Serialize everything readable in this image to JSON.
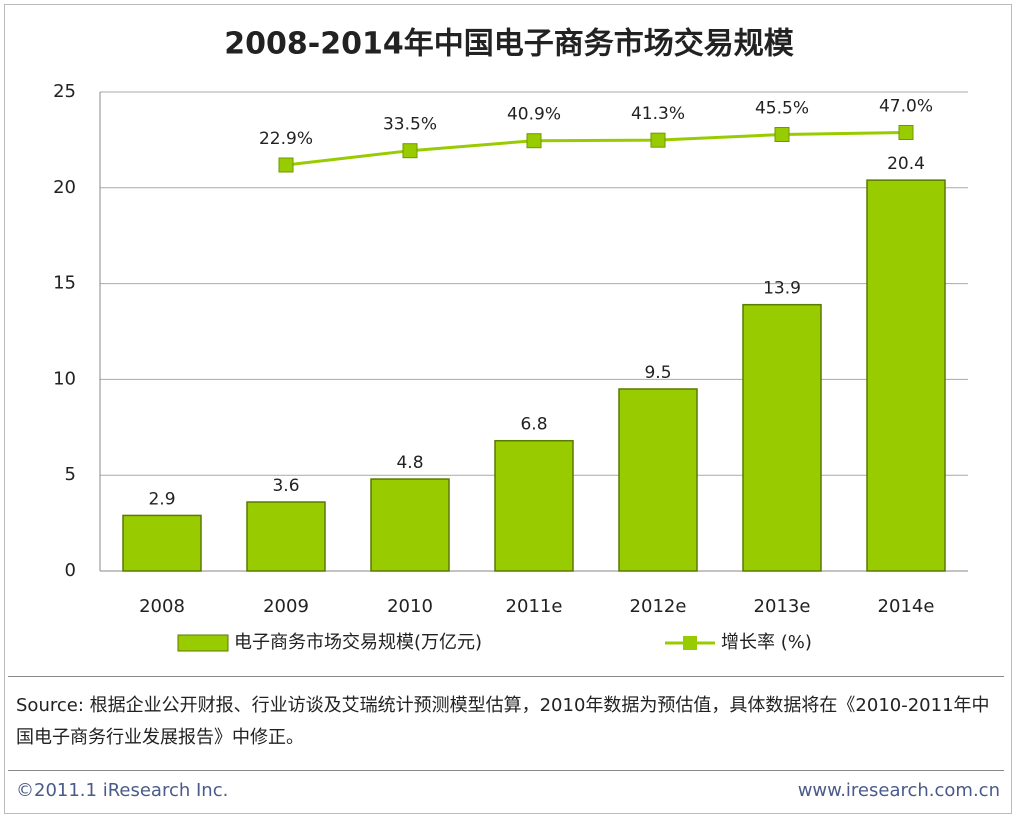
{
  "chart_data": {
    "type": "bar",
    "title": "2008-2014年中国电子商务市场交易规模",
    "categories": [
      "2008",
      "2009",
      "2010",
      "2011e",
      "2012e",
      "2013e",
      "2014e"
    ],
    "series": [
      {
        "name": "电子商务市场交易规模(万亿元)",
        "type": "bar",
        "color": "#99cc00",
        "values": [
          2.9,
          3.6,
          4.8,
          6.8,
          9.5,
          13.9,
          20.4
        ]
      },
      {
        "name": "增长率 (%)",
        "type": "line",
        "axis": "y2",
        "color": "#99cc00",
        "values": [
          null,
          22.9,
          33.5,
          40.9,
          41.3,
          45.5,
          47.0
        ],
        "value_labels": [
          null,
          "22.9%",
          "33.5%",
          "40.9%",
          "41.3%",
          "45.5%",
          "47.0%"
        ]
      }
    ],
    "ylim": [
      0,
      25
    ],
    "yticks": [
      0,
      5,
      10,
      15,
      20,
      25
    ],
    "y2lim": [
      -278,
      77
    ],
    "grid": true,
    "legend": "bottom"
  },
  "source": "Source: 根据企业公开财报、行业访谈及艾瑞统计预测模型估算，2010年数据为预估值，具体数据将在《2010-2011年中国电子商务行业发展报告》中修正。",
  "footer": {
    "left": "©2011.1 iResearch Inc.",
    "right": "www.iresearch.com.cn"
  }
}
